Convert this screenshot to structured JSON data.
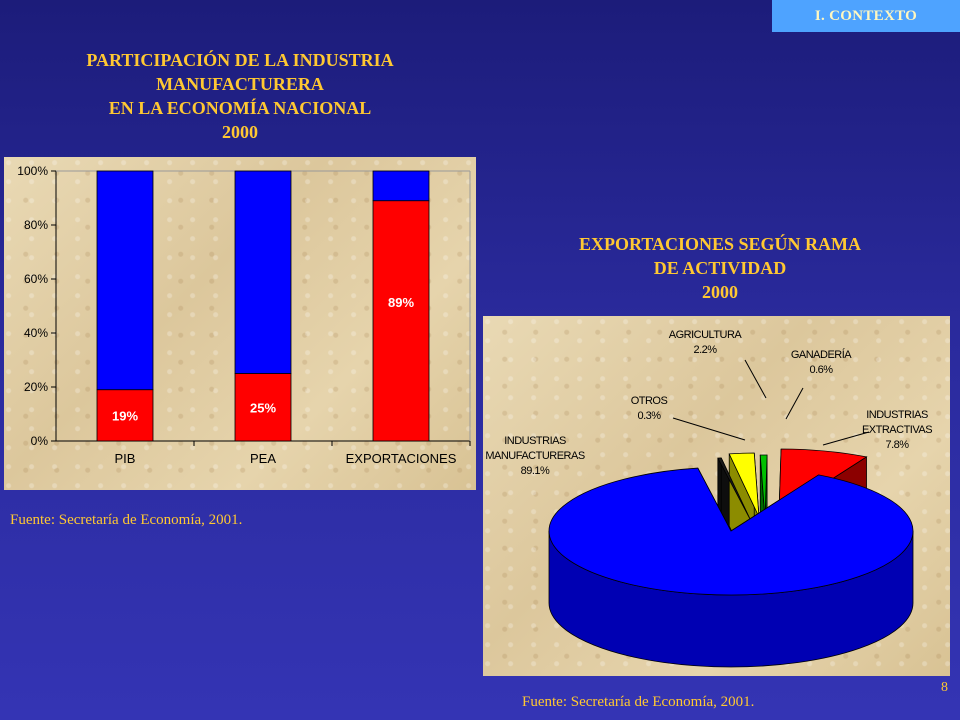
{
  "badge": "I. CONTEXTO",
  "page_number": "8",
  "bar_chart": {
    "title_lines": [
      "PARTICIPACIÓN  DE LA INDUSTRIA",
      "MANUFACTURERA",
      "EN LA ECONOMÍA  NACIONAL",
      "2000"
    ],
    "source": "Fuente: Secretaría de Economía, 2001."
  },
  "pie_chart": {
    "title_lines": [
      "EXPORTACIONES  SEGÚN RAMA",
      "DE ACTIVIDAD",
      "2000"
    ],
    "source": "Fuente: Secretaría de Economía, 2001."
  },
  "colors": {
    "blue": "#0000ff",
    "red": "#ff0000",
    "yellow": "#ffff00",
    "green": "#00c000",
    "olive": "#808000",
    "title": "#ffc832"
  },
  "chart_data": [
    {
      "type": "bar",
      "stacked": true,
      "categories": [
        "PIB",
        "PEA",
        "EXPORTACIONES"
      ],
      "series": [
        {
          "values": [
            19,
            25,
            89
          ],
          "color": "#ff0000"
        },
        {
          "values": [
            81,
            75,
            11
          ],
          "color": "#0000ff"
        }
      ],
      "data_labels": [
        "19%",
        "25%",
        "89%"
      ],
      "yticks": [
        "0%",
        "20%",
        "40%",
        "60%",
        "80%",
        "100%"
      ],
      "ylim": [
        0,
        100
      ],
      "grid": false
    },
    {
      "type": "pie",
      "style": "3d-exploded",
      "slices": [
        {
          "label_lines": [
            "INDUSTRIAS",
            "MANUFACTURERAS",
            "89.1%"
          ],
          "value": 89.1,
          "color": "#0000ff"
        },
        {
          "label_lines": [
            "OTROS",
            "0.3%"
          ],
          "value": 0.3,
          "color": "#1a1a1a"
        },
        {
          "label_lines": [
            "AGRICULTURA",
            "2.2%"
          ],
          "value": 2.2,
          "color": "#ffff00"
        },
        {
          "label_lines": [
            "GANADERÍA",
            "0.6%"
          ],
          "value": 0.6,
          "color": "#00c000"
        },
        {
          "label_lines": [
            "INDUSTRIAS",
            "EXTRACTIVAS",
            "7.8%"
          ],
          "value": 7.8,
          "color": "#ff0000"
        }
      ]
    }
  ]
}
